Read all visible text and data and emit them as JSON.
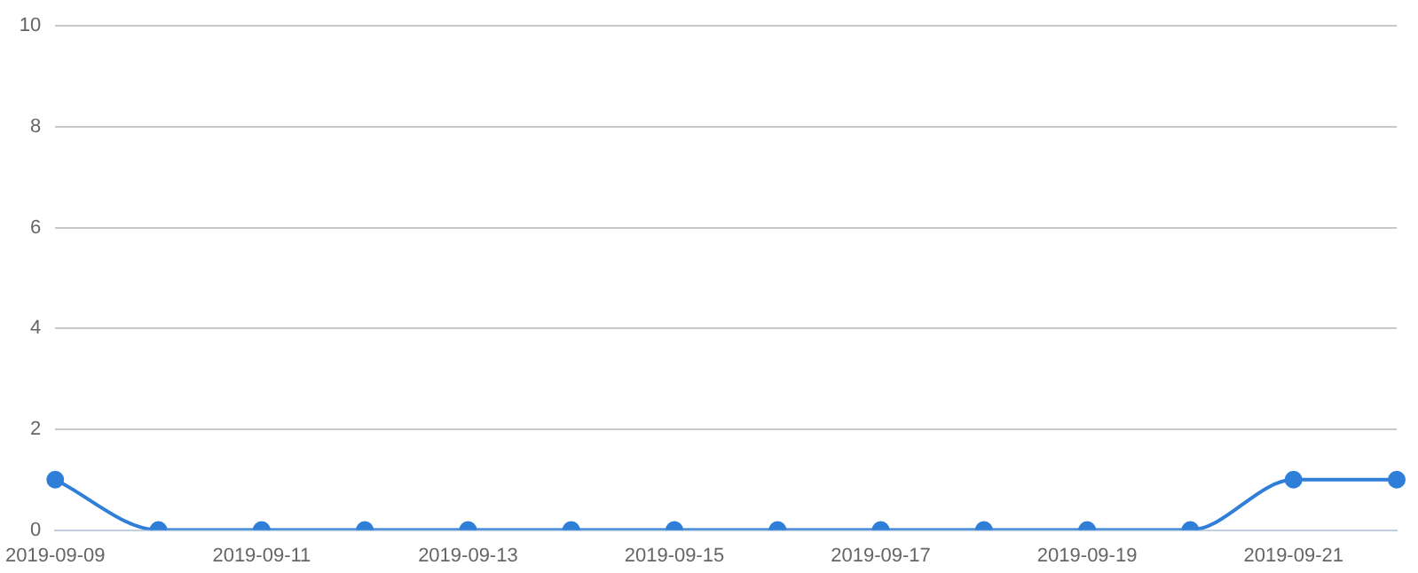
{
  "chart_data": {
    "type": "line",
    "categories": [
      "2019-09-09",
      null,
      "2019-09-11",
      null,
      "2019-09-13",
      null,
      "2019-09-15",
      null,
      "2019-09-17",
      null,
      "2019-09-19",
      null,
      "2019-09-21",
      null
    ],
    "series": [
      {
        "color": "#2f7ed8",
        "values": [
          1,
          0,
          0,
          0,
          0,
          0,
          0,
          0,
          0,
          0,
          0,
          0,
          1,
          1
        ]
      }
    ],
    "ylim": [
      0,
      10
    ],
    "yticks": [
      0,
      2,
      4,
      6,
      8,
      10
    ],
    "grid": "y",
    "legend": false,
    "marker": "circle",
    "line_style": "solid"
  }
}
